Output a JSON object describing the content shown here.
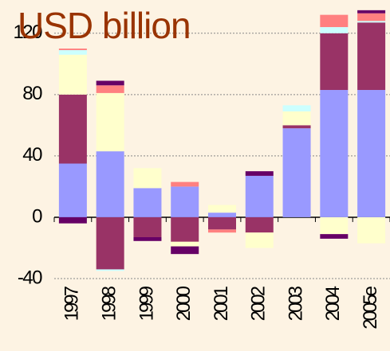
{
  "chart_data": {
    "type": "bar",
    "stacked": true,
    "title": "USD billion",
    "categories": [
      "1997",
      "1998",
      "1999",
      "2000",
      "2001",
      "2002",
      "2003",
      "2004",
      "2005e"
    ],
    "series": [
      {
        "color": "#9999ff",
        "values": [
          35,
          43,
          19,
          20,
          3,
          27,
          58,
          83,
          83
        ]
      },
      {
        "color": "#993366",
        "values": [
          45,
          -34,
          -13,
          -16,
          -8,
          -10,
          2,
          37,
          44
        ]
      },
      {
        "color": "#ffffcc",
        "values": [
          26,
          38,
          13,
          -3,
          5,
          -10,
          9,
          -11,
          -17
        ]
      },
      {
        "color": "#ccffff",
        "values": [
          3,
          -1,
          null,
          null,
          null,
          null,
          4,
          4,
          1
        ]
      },
      {
        "color": "#ff8080",
        "values": [
          1,
          5,
          null,
          3,
          -2,
          null,
          null,
          8,
          5
        ]
      },
      {
        "color": "#660066",
        "values": [
          -4,
          3,
          -2.5,
          -5,
          null,
          3,
          null,
          -3,
          2
        ]
      }
    ],
    "ylim": [
      -40,
      137
    ],
    "yticks": [
      -40,
      0,
      40,
      80,
      120
    ],
    "grid": true
  }
}
